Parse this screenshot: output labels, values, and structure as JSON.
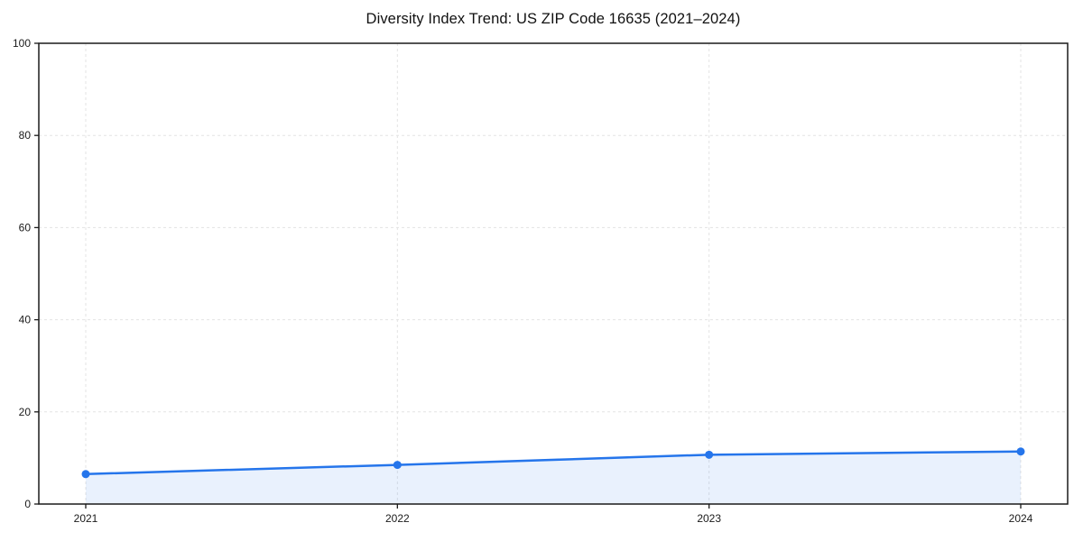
{
  "chart_data": {
    "type": "line",
    "title": "Diversity Index Trend: US ZIP Code 16635 (2021–2024)",
    "x": [
      "2021",
      "2022",
      "2023",
      "2024"
    ],
    "series": [
      {
        "name": "Diversity Index",
        "values": [
          6.5,
          8.5,
          10.7,
          11.4
        ]
      }
    ],
    "xlabel": "",
    "ylabel": "",
    "ylim": [
      0,
      100
    ],
    "yticks": [
      0,
      20,
      40,
      60,
      80,
      100
    ],
    "grid": "dashed-both",
    "legend": "none",
    "colors": {
      "line": "#2575eb",
      "marker": "#2575eb",
      "area_fill": "rgba(37,117,235,0.10)",
      "grid": "#e3e3e3",
      "spine": "#1a1a1a",
      "tick_label": "#1a1a1a",
      "background": "#ffffff"
    }
  }
}
